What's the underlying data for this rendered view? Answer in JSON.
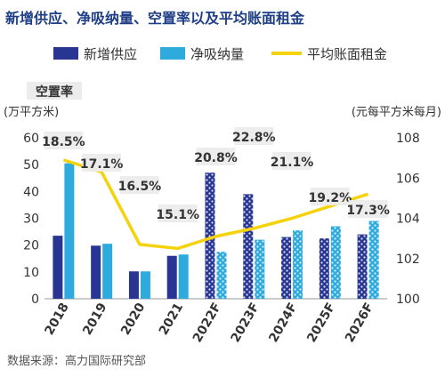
{
  "chart_data": {
    "type": "bar+line",
    "title": "新增供应、净吸纳量、空置率以及平均账面租金",
    "legend": [
      "新增供应",
      "净吸纳量",
      "平均账面租金"
    ],
    "legend_position": "top",
    "left_axis_header": "空置率",
    "left_unit": "(万平方米)",
    "right_unit": "(元每平方米每月)",
    "categories": [
      "2018",
      "2019",
      "2020",
      "2021",
      "2022F",
      "2023F",
      "2024F",
      "2025F",
      "2026F"
    ],
    "series": [
      {
        "name": "新增供应",
        "values": [
          23.5,
          19.8,
          10.2,
          16,
          47,
          39,
          23,
          22.5,
          24
        ]
      },
      {
        "name": "净吸纳量",
        "values": [
          50.5,
          20.5,
          10.2,
          16.5,
          17.5,
          22,
          25.5,
          27,
          29
        ]
      },
      {
        "name": "平均账面租金",
        "axis": "right",
        "values": [
          106.9,
          106.3,
          102.7,
          102.5,
          103.1,
          103.5,
          104,
          104.6,
          105.2
        ]
      }
    ],
    "vacancy_labels": [
      "18.5%",
      "17.1%",
      "16.5%",
      "15.1%",
      "20.8%",
      "22.8%",
      "21.1%",
      "19.2%",
      "17.3%"
    ],
    "left_ticks": [
      0,
      10,
      20,
      30,
      40,
      50,
      60
    ],
    "right_ticks": [
      100,
      102,
      104,
      106,
      108
    ],
    "ylim_left": [
      0,
      60
    ],
    "ylim_right": [
      100,
      108
    ],
    "grid": false,
    "forecast_style": "dotted",
    "colors": {
      "supply": "#283593",
      "absorption": "#2eaadc",
      "rent": "#f5d20a",
      "label_bg": "#ececec",
      "text": "#333333"
    }
  },
  "source": "数据来源：高力国际研究部"
}
